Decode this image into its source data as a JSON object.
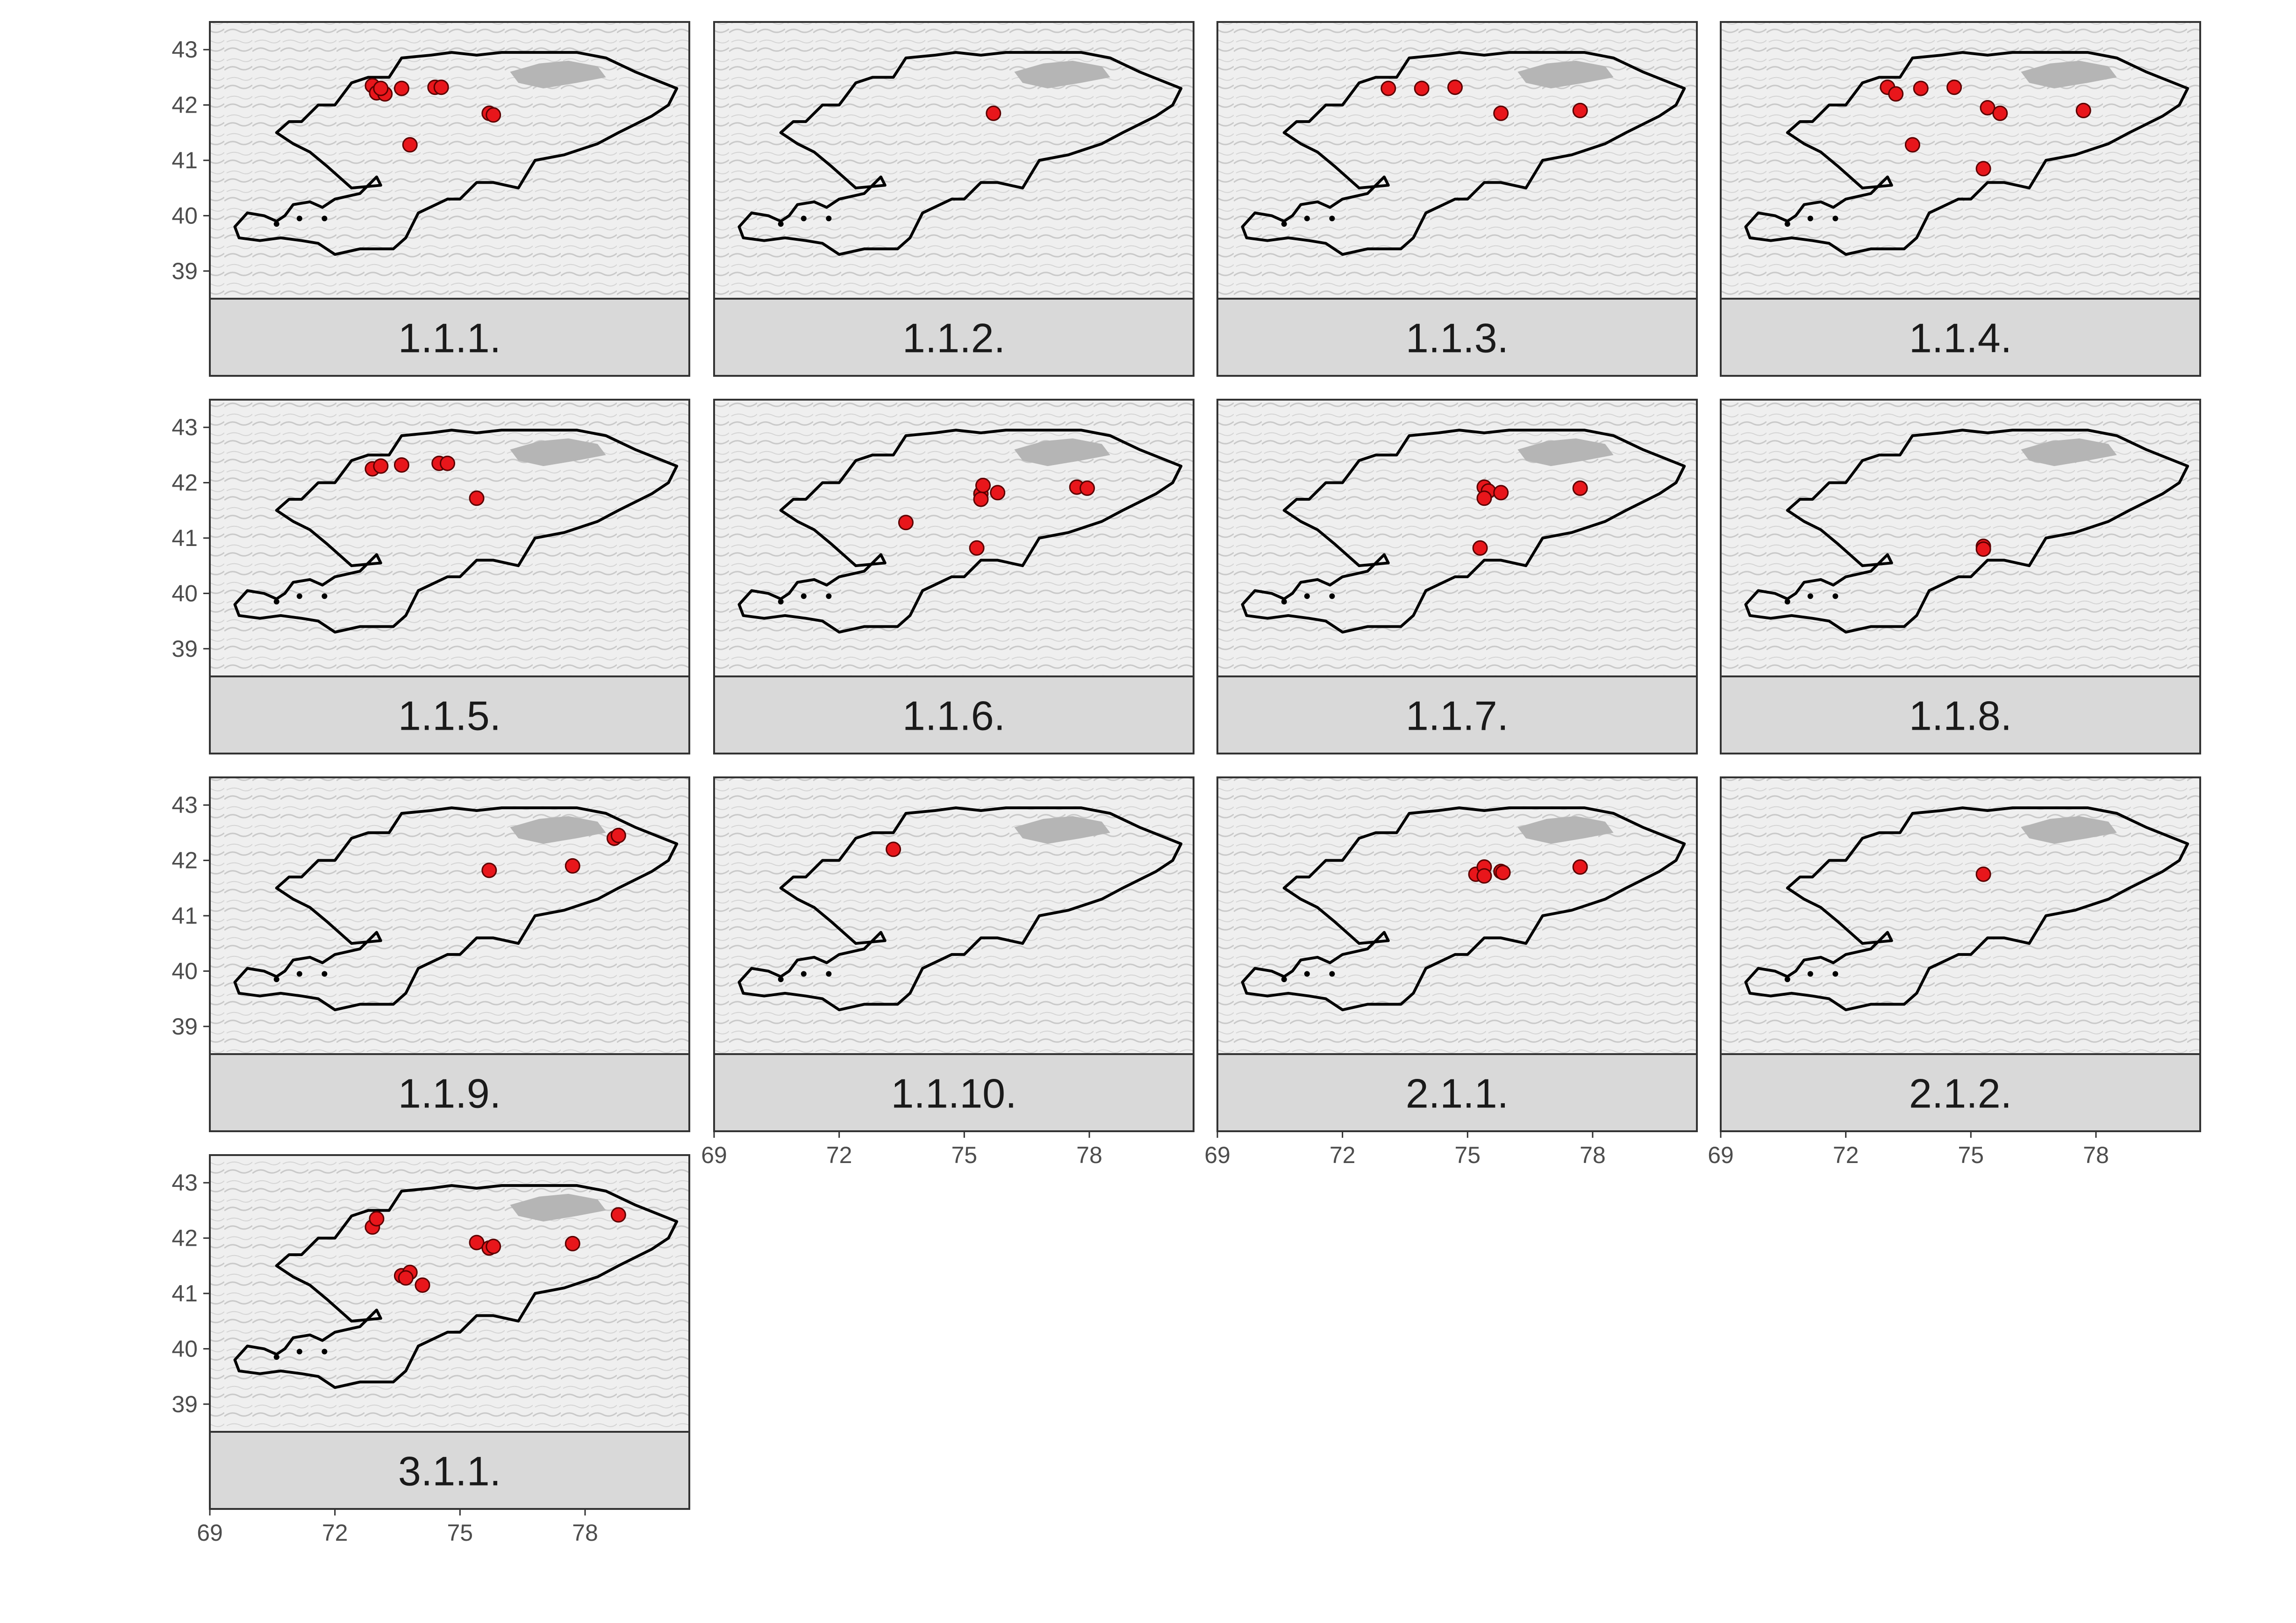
{
  "figure": {
    "type": "faceted point map",
    "x_axis": {
      "range": [
        69,
        80.5
      ],
      "ticks": [
        "69",
        "72",
        "75",
        "78"
      ]
    },
    "y_axis": {
      "range": [
        38.5,
        43.5
      ],
      "ticks": [
        "43",
        "42",
        "41",
        "40",
        "39"
      ]
    },
    "colors": {
      "background": "#efefef",
      "terrain": "#c9c9c9",
      "lake": "#b5b5b5",
      "strip": "#d9d9d9",
      "border": "#000000",
      "point_fill": "#e8161b",
      "point_stroke": "#5a0000",
      "frame": "#333333",
      "tick_label": "#4d4d4d"
    }
  },
  "chart_data": {
    "type": "scatter",
    "panels": [
      {
        "label": "1.1.1.",
        "points": [
          [
            72.9,
            42.35
          ],
          [
            73.0,
            42.22
          ],
          [
            73.2,
            42.2
          ],
          [
            73.1,
            42.3
          ],
          [
            73.6,
            42.3
          ],
          [
            74.4,
            42.32
          ],
          [
            74.55,
            42.32
          ],
          [
            75.7,
            41.85
          ],
          [
            75.8,
            41.82
          ],
          [
            73.8,
            41.28
          ]
        ]
      },
      {
        "label": "1.1.2.",
        "points": [
          [
            75.7,
            41.85
          ]
        ]
      },
      {
        "label": "1.1.3.",
        "points": [
          [
            73.1,
            42.3
          ],
          [
            73.9,
            42.3
          ],
          [
            74.7,
            42.32
          ],
          [
            75.8,
            41.85
          ],
          [
            77.7,
            41.9
          ]
        ]
      },
      {
        "label": "1.1.4.",
        "points": [
          [
            73.0,
            42.32
          ],
          [
            73.2,
            42.2
          ],
          [
            73.8,
            42.3
          ],
          [
            74.6,
            42.32
          ],
          [
            75.4,
            41.95
          ],
          [
            75.7,
            41.85
          ],
          [
            77.7,
            41.9
          ],
          [
            73.6,
            41.28
          ],
          [
            75.3,
            40.85
          ]
        ]
      },
      {
        "label": "1.1.5.",
        "points": [
          [
            72.9,
            42.25
          ],
          [
            73.1,
            42.3
          ],
          [
            73.6,
            42.32
          ],
          [
            74.5,
            42.35
          ],
          [
            74.7,
            42.35
          ],
          [
            75.4,
            41.72
          ]
        ]
      },
      {
        "label": "1.1.6.",
        "points": [
          [
            73.6,
            41.28
          ],
          [
            75.4,
            41.8
          ],
          [
            75.45,
            41.95
          ],
          [
            75.4,
            41.7
          ],
          [
            75.8,
            41.82
          ],
          [
            77.7,
            41.92
          ],
          [
            77.95,
            41.9
          ],
          [
            75.3,
            40.82
          ]
        ]
      },
      {
        "label": "1.1.7.",
        "points": [
          [
            75.4,
            41.92
          ],
          [
            75.5,
            41.85
          ],
          [
            75.4,
            41.72
          ],
          [
            75.8,
            41.82
          ],
          [
            77.7,
            41.9
          ],
          [
            75.3,
            40.82
          ]
        ]
      },
      {
        "label": "1.1.8.",
        "points": [
          [
            75.3,
            40.85
          ],
          [
            75.3,
            40.8
          ]
        ]
      },
      {
        "label": "1.1.9.",
        "points": [
          [
            75.7,
            41.82
          ],
          [
            77.7,
            41.9
          ],
          [
            78.7,
            42.4
          ],
          [
            78.8,
            42.45
          ]
        ]
      },
      {
        "label": "1.1.10.",
        "points": [
          [
            73.3,
            42.2
          ]
        ]
      },
      {
        "label": "2.1.1.",
        "points": [
          [
            75.2,
            41.75
          ],
          [
            75.4,
            41.88
          ],
          [
            75.4,
            41.72
          ],
          [
            75.8,
            41.8
          ],
          [
            75.85,
            41.78
          ],
          [
            77.7,
            41.88
          ]
        ]
      },
      {
        "label": "2.1.2.",
        "points": [
          [
            75.3,
            41.75
          ]
        ]
      },
      {
        "label": "3.1.1.",
        "points": [
          [
            72.9,
            42.2
          ],
          [
            73.0,
            42.35
          ],
          [
            73.6,
            41.32
          ],
          [
            73.8,
            41.38
          ],
          [
            73.7,
            41.28
          ],
          [
            74.1,
            41.15
          ],
          [
            75.4,
            41.92
          ],
          [
            75.7,
            41.82
          ],
          [
            75.8,
            41.85
          ],
          [
            77.7,
            41.9
          ],
          [
            78.8,
            42.42
          ]
        ]
      }
    ]
  }
}
